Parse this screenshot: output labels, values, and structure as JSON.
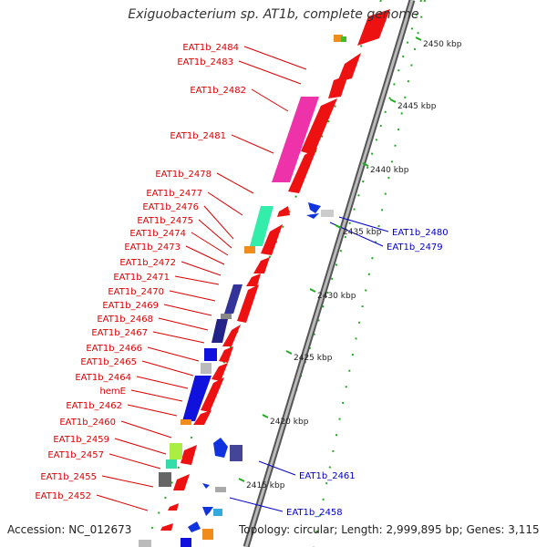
{
  "title": "Exiguobacterium sp. AT1b, complete genome",
  "footer": {
    "accession": "Accession: NC_012673",
    "topology": "Topology: circular; Length: 2,999,895 bp; Genes: 3,115"
  },
  "colors": {
    "forward_label": "#dd0000",
    "reverse_label": "#0000cc",
    "tick": "#22aa22",
    "backbone": "#888888"
  },
  "scale_labels": [
    "2450 kbp",
    "2445 kbp",
    "2440 kbp",
    "2435 kbp",
    "2430 kbp",
    "2425 kbp",
    "2420 kbp",
    "2415 kbp"
  ],
  "left_genes": [
    "EAT1b_2484",
    "EAT1b_2483",
    "EAT1b_2482",
    "EAT1b_2481",
    "EAT1b_2478",
    "EAT1b_2477",
    "EAT1b_2476",
    "EAT1b_2475",
    "EAT1b_2474",
    "EAT1b_2473",
    "EAT1b_2472",
    "EAT1b_2471",
    "EAT1b_2470",
    "EAT1b_2469",
    "EAT1b_2468",
    "EAT1b_2467",
    "EAT1b_2466",
    "EAT1b_2465",
    "EAT1b_2464",
    "hemE",
    "EAT1b_2462",
    "EAT1b_2460",
    "EAT1b_2459",
    "EAT1b_2457",
    "EAT1b_2455",
    "EAT1b_2452"
  ],
  "right_genes": [
    "EAT1b_2480",
    "EAT1b_2479",
    "EAT1b_2461",
    "EAT1b_2458"
  ]
}
